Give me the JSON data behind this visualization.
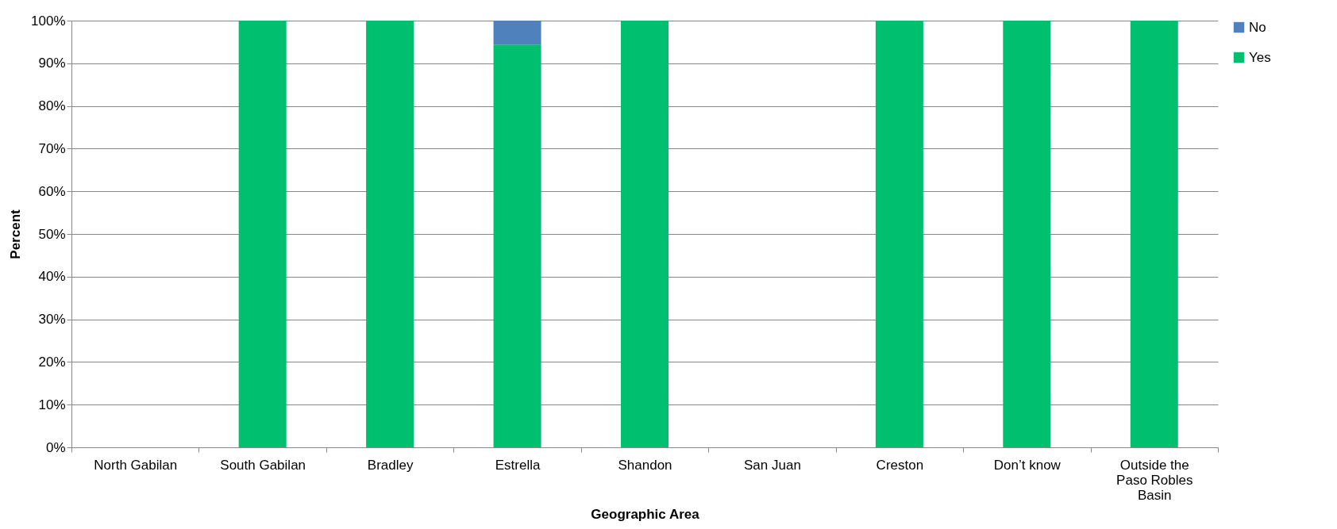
{
  "chart_data": {
    "type": "bar",
    "stacked": true,
    "xlabel": "Geographic Area",
    "ylabel": "Percent",
    "categories": [
      "North Gabilan",
      "South Gabilan",
      "Bradley",
      "Estrella",
      "Shandon",
      "San Juan",
      "Creston",
      "Don’t know",
      "Outside the Paso Robles Basin"
    ],
    "series": [
      {
        "name": "Yes",
        "color": "#00bf6f",
        "values": [
          null,
          100,
          100,
          94.4,
          100,
          null,
          100,
          100,
          100
        ]
      },
      {
        "name": "No",
        "color": "#4f81bd",
        "values": [
          null,
          0,
          0,
          5.6,
          0,
          null,
          0,
          0,
          0
        ]
      }
    ],
    "ylim": [
      0,
      100
    ],
    "yticks": [
      {
        "value": 0,
        "label": "0%"
      },
      {
        "value": 10,
        "label": "10%"
      },
      {
        "value": 20,
        "label": "20%"
      },
      {
        "value": 30,
        "label": "30%"
      },
      {
        "value": 40,
        "label": "40%"
      },
      {
        "value": 50,
        "label": "50%"
      },
      {
        "value": 60,
        "label": "60%"
      },
      {
        "value": 70,
        "label": "70%"
      },
      {
        "value": 80,
        "label": "80%"
      },
      {
        "value": 90,
        "label": "90%"
      },
      {
        "value": 100,
        "label": "100%"
      }
    ],
    "grid": "y",
    "legend": "right"
  }
}
